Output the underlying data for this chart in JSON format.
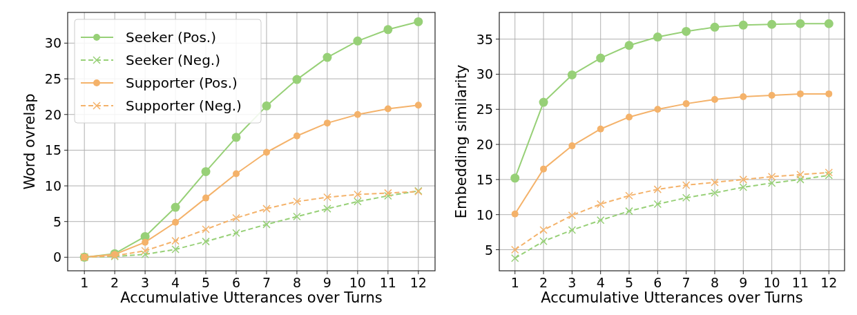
{
  "chart_data": [
    {
      "type": "line",
      "xlabel": "Accumulative Utterances over Turns",
      "ylabel": "Word ovrelap",
      "x": [
        1,
        2,
        3,
        4,
        5,
        6,
        7,
        8,
        9,
        10,
        11,
        12
      ],
      "xlim": [
        0.45,
        12.55
      ],
      "xticks": [
        1,
        2,
        3,
        4,
        5,
        6,
        7,
        8,
        9,
        10,
        11,
        12
      ],
      "ylim": [
        -1.9,
        34.3
      ],
      "yticks": [
        0,
        5,
        10,
        15,
        20,
        25,
        30
      ],
      "grid": true,
      "legend": "top left",
      "series": [
        {
          "name": "Seeker (Pos.)",
          "color": "#97d077",
          "marker": "circle",
          "line_style": "solid",
          "values": [
            0,
            0.5,
            2.9,
            7.0,
            12.0,
            16.8,
            21.2,
            24.9,
            28.0,
            30.3,
            31.9,
            33.0
          ]
        },
        {
          "name": "Seeker (Neg.)",
          "color": "#97d077",
          "marker": "cross",
          "line_style": "dashed",
          "values": [
            0,
            0.1,
            0.4,
            1.1,
            2.2,
            3.4,
            4.6,
            5.7,
            6.8,
            7.8,
            8.6,
            9.3
          ]
        },
        {
          "name": "Supporter (Pos.)",
          "color": "#f4b26a",
          "marker": "circle",
          "line_style": "solid",
          "values": [
            0,
            0.4,
            2.1,
            4.9,
            8.3,
            11.7,
            14.7,
            17.0,
            18.8,
            20.0,
            20.8,
            21.3
          ]
        },
        {
          "name": "Supporter (Neg.)",
          "color": "#f4b26a",
          "marker": "cross",
          "line_style": "dashed",
          "values": [
            0,
            0.2,
            0.9,
            2.3,
            3.9,
            5.5,
            6.8,
            7.8,
            8.4,
            8.8,
            9.0,
            9.2
          ]
        }
      ]
    },
    {
      "type": "line",
      "xlabel": "Accumulative Utterances over Turns",
      "ylabel": "Embedding similarity",
      "x": [
        1,
        2,
        3,
        4,
        5,
        6,
        7,
        8,
        9,
        10,
        11,
        12
      ],
      "xlim": [
        0.45,
        12.55
      ],
      "xticks": [
        1,
        2,
        3,
        4,
        5,
        6,
        7,
        8,
        9,
        10,
        11,
        12
      ],
      "ylim": [
        2.0,
        38.8
      ],
      "yticks": [
        5,
        10,
        15,
        20,
        25,
        30,
        35
      ],
      "grid": true,
      "series": [
        {
          "color": "#97d077",
          "marker": "circle",
          "line_style": "solid",
          "values": [
            15.2,
            26.0,
            29.9,
            32.3,
            34.1,
            35.3,
            36.1,
            36.7,
            37.0,
            37.1,
            37.2,
            37.2
          ]
        },
        {
          "color": "#97d077",
          "marker": "cross",
          "line_style": "dashed",
          "values": [
            3.8,
            6.2,
            7.8,
            9.2,
            10.5,
            11.5,
            12.4,
            13.1,
            13.9,
            14.5,
            15.0,
            15.6
          ]
        },
        {
          "color": "#f4b26a",
          "marker": "circle",
          "line_style": "solid",
          "values": [
            10.1,
            16.5,
            19.8,
            22.2,
            23.9,
            25.0,
            25.8,
            26.4,
            26.8,
            27.0,
            27.2,
            27.2
          ]
        },
        {
          "color": "#f4b26a",
          "marker": "cross",
          "line_style": "dashed",
          "values": [
            5.0,
            7.8,
            9.9,
            11.5,
            12.7,
            13.6,
            14.2,
            14.6,
            15.0,
            15.4,
            15.7,
            16.0
          ]
        }
      ]
    }
  ]
}
